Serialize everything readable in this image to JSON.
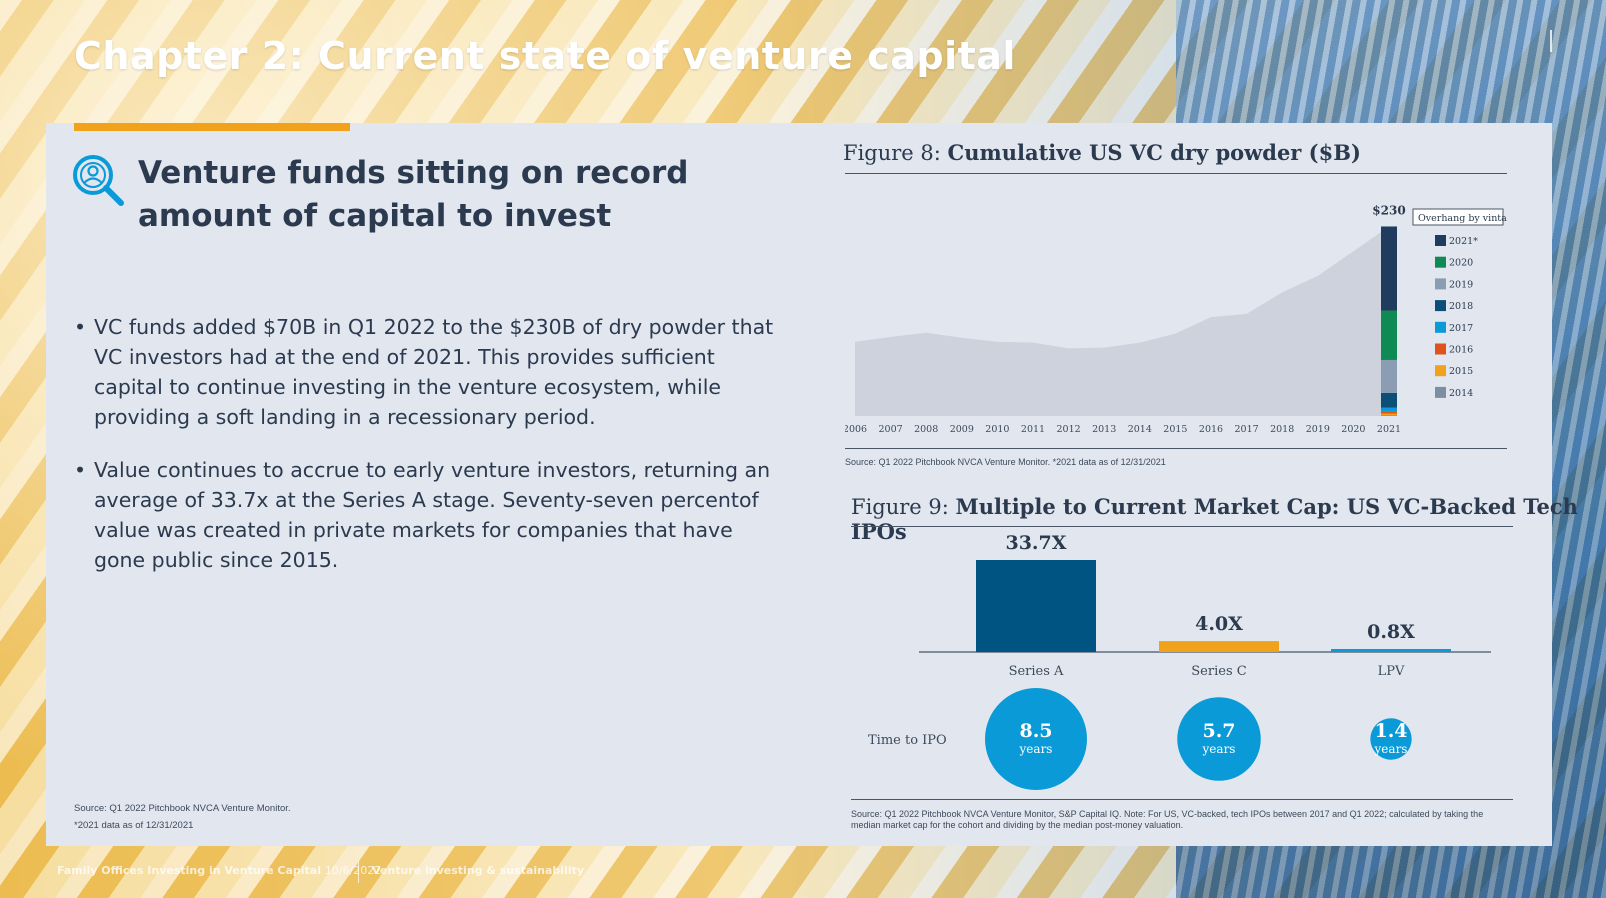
{
  "page": {
    "title": "Chapter 2: Current state of venture capital",
    "footer_left": "Family Offices Investing in Venture Capital",
    "footer_date": "10/6/2022",
    "footer_section": "Venture investing & sustainability"
  },
  "left": {
    "heading": "Venture funds sitting on record amount of capital to invest",
    "heading_icon": "magnifier-person-icon",
    "bullets": [
      "VC funds added $70B in Q1 2022 to the $230B of dry powder that VC investors had at the end of 2021. This provides sufficient capital to continue investing in the venture ecosystem, while providing a soft landing in a recessionary period.",
      "Value continues to accrue to early venture investors, returning an average of 33.7x at the Series A stage. Seventy-seven percentof value was created in private markets for companies that have gone public since 2015."
    ],
    "source_line1": "Source: Q1 2022 Pitchbook NVCA Venture Monitor.",
    "source_line2": "*2021 data as of 12/31/2021"
  },
  "colors": {
    "accent": "#f0a21c",
    "navy": "#1f3b5e",
    "bar_blue": "#005482",
    "light_blue": "#0a9ad8",
    "area": "#cdd2dc"
  },
  "fig8": {
    "prefix": "Figure 8: ",
    "title": "Cumulative US VC dry powder ($B)",
    "source": "Source: Q1 2022 Pitchbook NVCA Venture Monitor. *2021 data as of 12/31/2021",
    "legend_title": "Overhang by vintage"
  },
  "fig9": {
    "prefix": "Figure 9: ",
    "title": "Multiple to Current Market Cap: US VC-Backed Tech IPOs",
    "time_label": "Time to IPO",
    "years_word": "years",
    "source": "Source: Q1 2022 Pitchbook NVCA Venture Monitor, S&P Capital IQ. Note: For US, VC-backed, tech IPOs between 2017 and Q1 2022; calculated by taking the median market cap for the cohort and dividing by the median post-money valuation."
  },
  "chart_data": [
    {
      "type": "area",
      "title": "Cumulative US VC dry powder ($B)",
      "x": [
        "2006",
        "2007",
        "2008",
        "2009",
        "2010",
        "2011",
        "2012",
        "2013",
        "2014",
        "2015",
        "2016",
        "2017",
        "2018",
        "2019",
        "2020",
        "2021"
      ],
      "values": [
        90,
        96,
        101,
        95,
        90,
        89,
        82,
        83,
        89,
        100,
        120,
        124,
        150,
        170,
        200,
        230
      ],
      "ylim": [
        0,
        250
      ],
      "annotation": "$230",
      "legend_title": "Overhang by vintage",
      "stacked_bar_2021": {
        "categories": [
          "2021*",
          "2020",
          "2019",
          "2018",
          "2017",
          "2016",
          "2015",
          "2014"
        ],
        "values": [
          102,
          60,
          40,
          18,
          5,
          2,
          2,
          1
        ],
        "colors": [
          "#1f3b5e",
          "#0f8a55",
          "#8a9db3",
          "#0b4f78",
          "#0a9ad8",
          "#e0521b",
          "#f0a21c",
          "#7d8ea3"
        ]
      }
    },
    {
      "type": "bar",
      "title": "Multiple to Current Market Cap: US VC-Backed Tech IPOs",
      "categories": [
        "Series A",
        "Series C",
        "LPV"
      ],
      "values": [
        33.7,
        4.0,
        0.8
      ],
      "value_labels": [
        "33.7X",
        "4.0X",
        "0.8X"
      ],
      "colors": [
        "#005482",
        "#f0a21c",
        "#0a9ad8"
      ],
      "time_to_ipo_years": [
        8.5,
        5.7,
        1.4
      ],
      "time_to_ipo_labels": [
        "8.5",
        "5.7",
        "1.4"
      ]
    }
  ]
}
